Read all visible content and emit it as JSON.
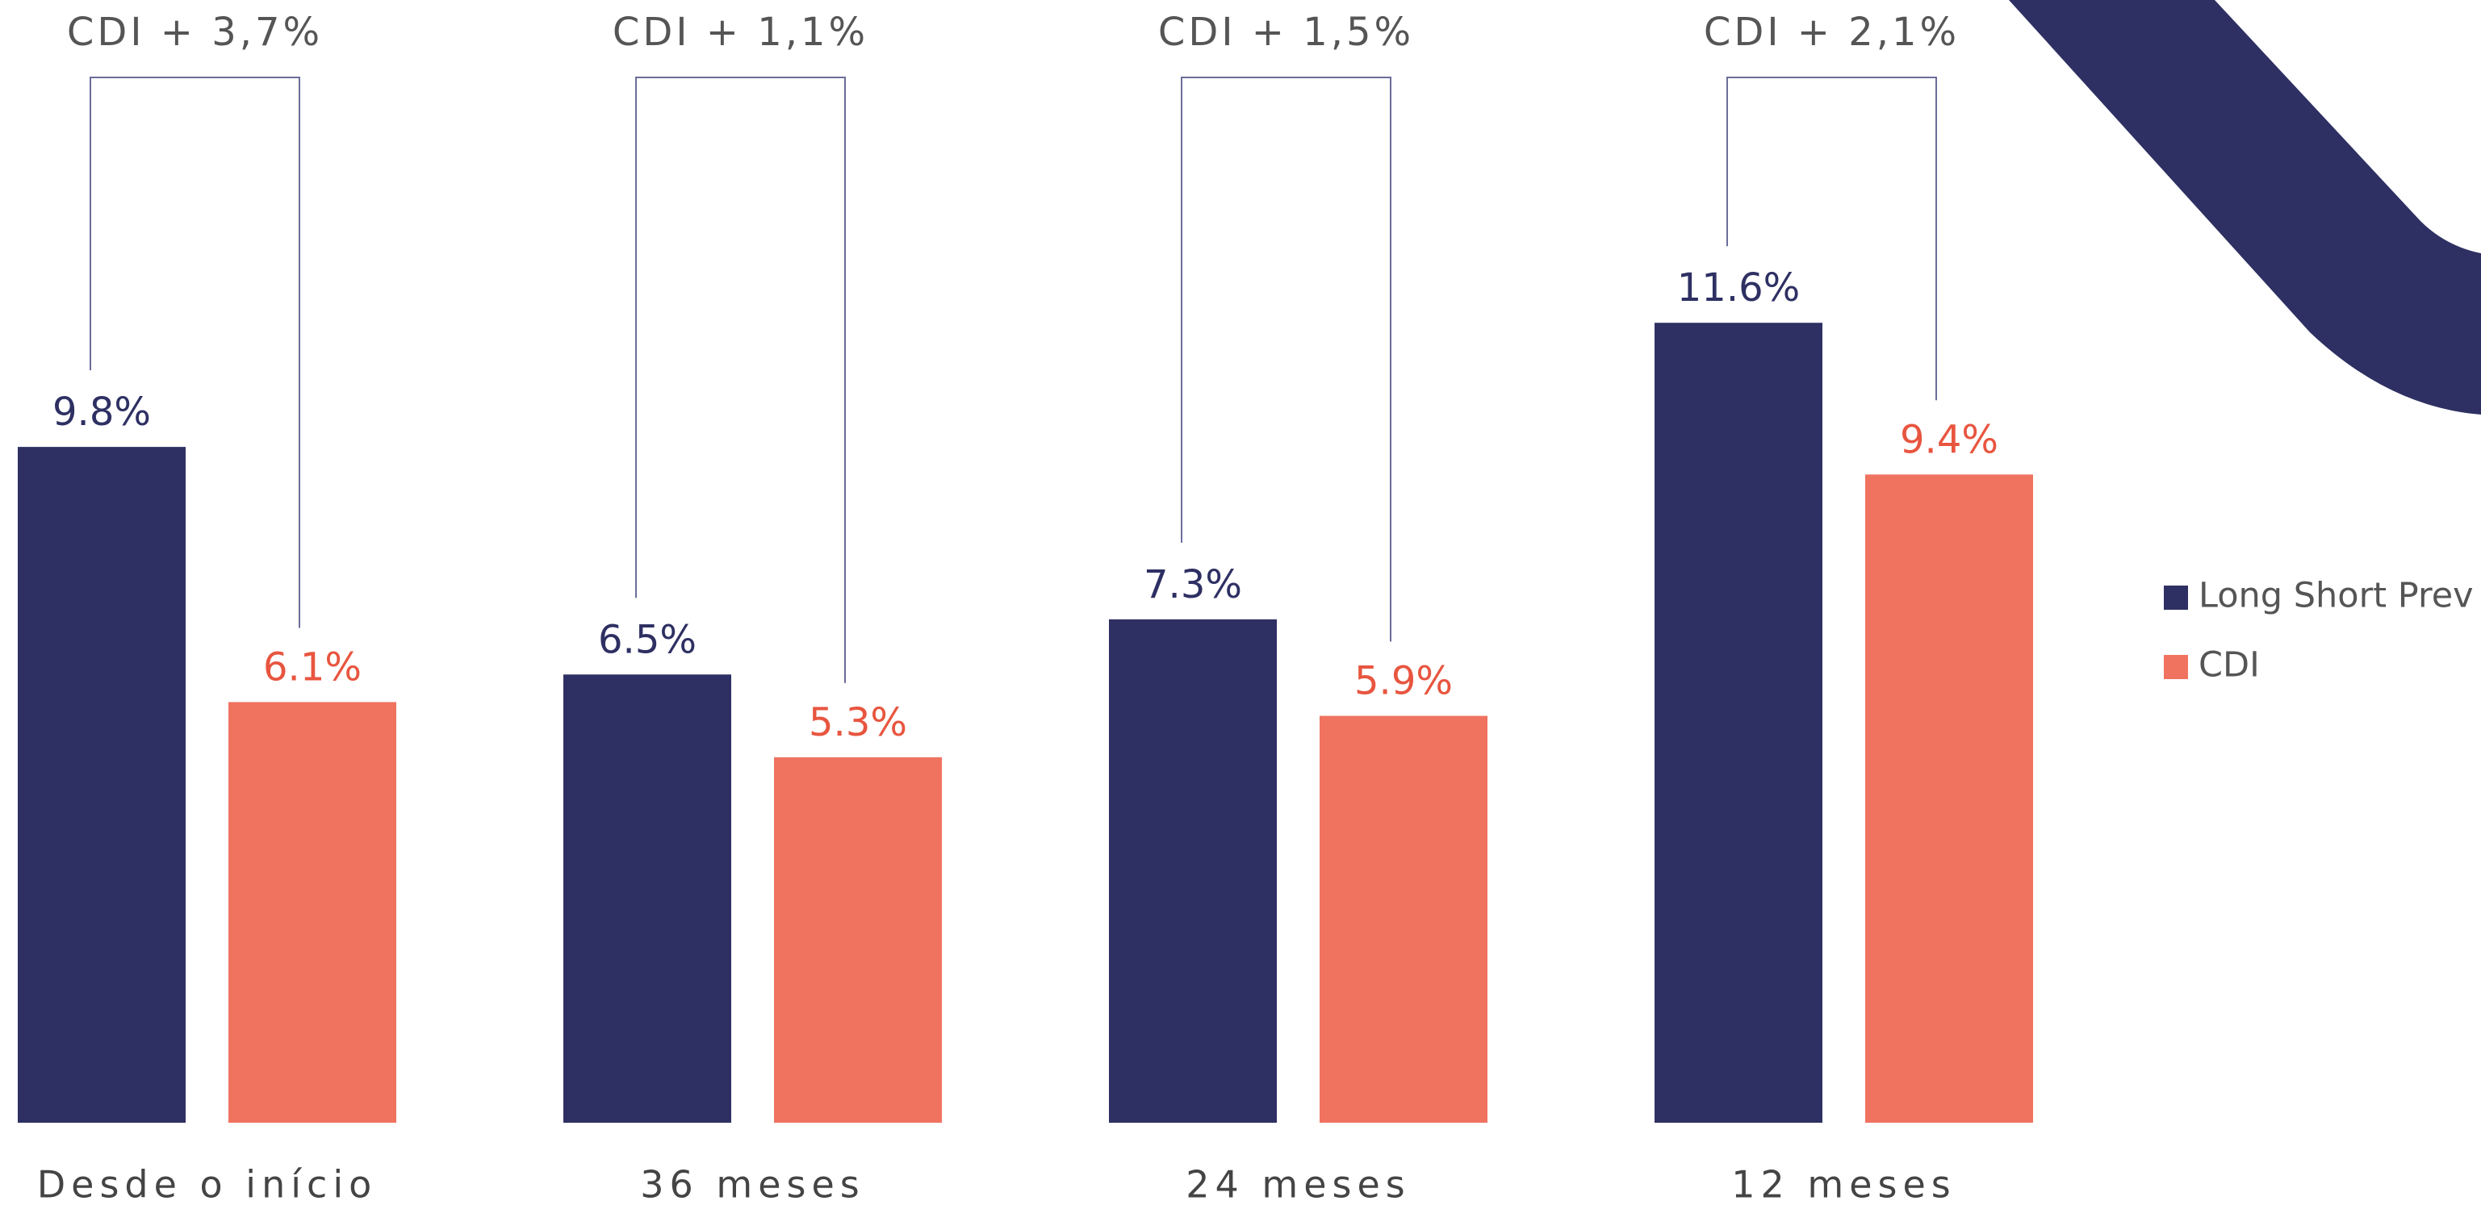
{
  "chart_data": {
    "type": "bar",
    "categories": [
      "Desde o início",
      "36 meses",
      "24 meses",
      "12 meses"
    ],
    "series": [
      {
        "name": "Long Short Prev",
        "color": "#2e3063",
        "values": [
          9.8,
          6.5,
          7.3,
          11.6
        ],
        "value_labels": [
          "9.8%",
          "6.5%",
          "7.3%",
          "11.6%"
        ]
      },
      {
        "name": "CDI",
        "color": "#f07360",
        "values": [
          6.1,
          5.3,
          5.9,
          9.4
        ],
        "value_labels": [
          "6.1%",
          "5.3%",
          "5.9%",
          "9.4%"
        ]
      }
    ],
    "annotations": [
      "CDI + 3,7%",
      "CDI + 1,1%",
      "CDI + 1,5%",
      "CDI + 2,1%"
    ],
    "ylim": [
      0,
      16
    ],
    "legend": "right"
  }
}
